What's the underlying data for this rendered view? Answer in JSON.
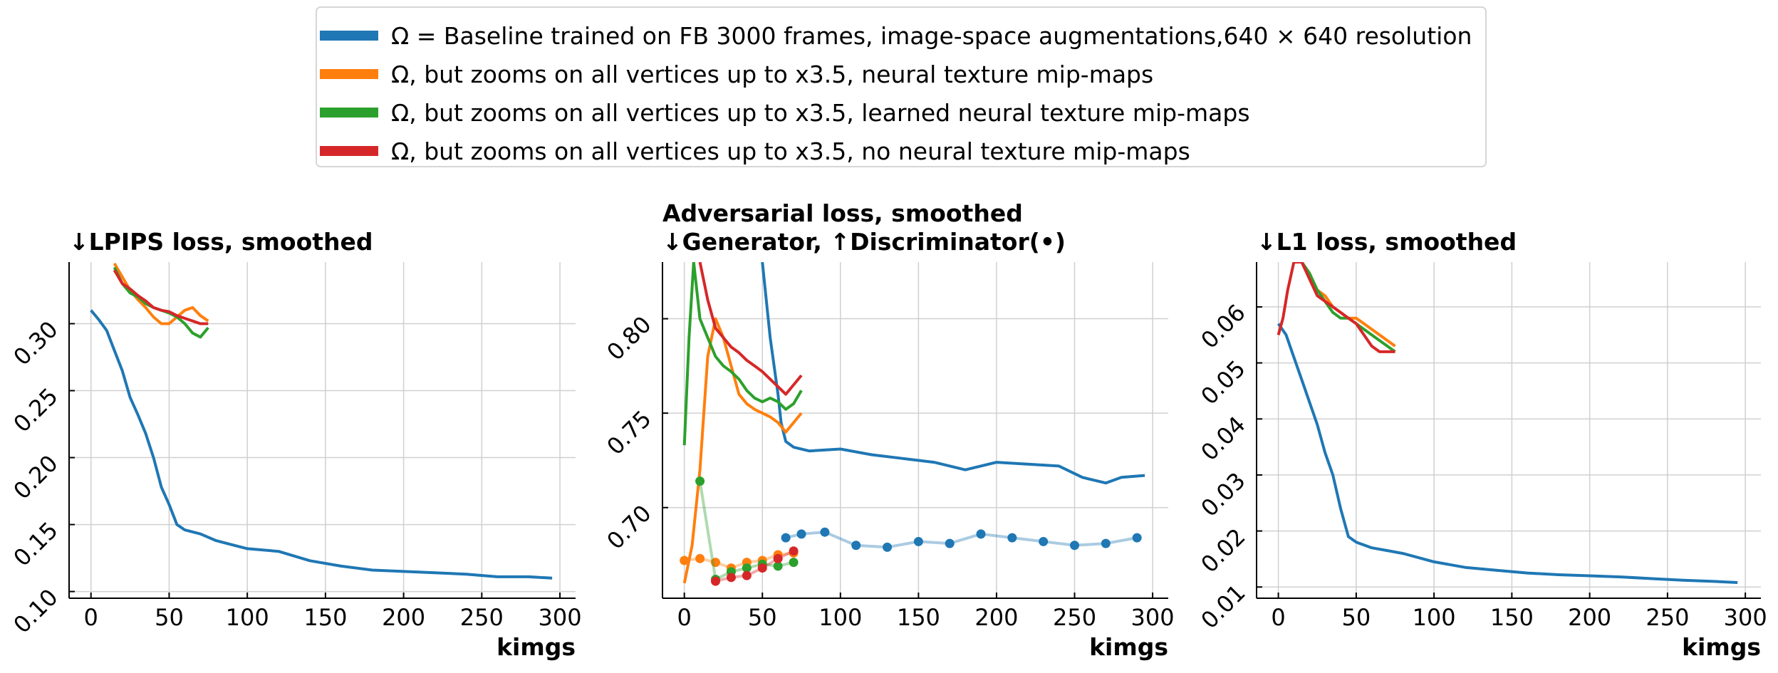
{
  "legend": [
    {
      "label": "Ω = Baseline trained on FB 3000 frames, image-space augmentations,640 × 640 resolution",
      "color": "#1f77b4"
    },
    {
      "label": "Ω, but zooms on all vertices up to x3.5, neural texture mip-maps",
      "color": "#ff7f0e"
    },
    {
      "label": "Ω, but zooms on all vertices up to x3.5, learned neural texture mip-maps",
      "color": "#2ca02c"
    },
    {
      "label": "Ω, but zooms on all vertices up to x3.5, no neural texture mip-maps",
      "color": "#d62728"
    }
  ],
  "chart_data": [
    {
      "type": "line",
      "title": "↓LPIPS loss, smoothed",
      "xlabel": "kimgs",
      "ylabel": "",
      "xlim": [
        -14,
        310
      ],
      "ylim": [
        0.095,
        0.346
      ],
      "xticks": [
        0,
        50,
        100,
        150,
        200,
        250,
        300
      ],
      "yticks": [
        0.1,
        0.15,
        0.2,
        0.25,
        0.3
      ],
      "ytick_labels": [
        "0.10",
        "0.15",
        "0.20",
        "0.25",
        "0.30"
      ],
      "grid": true,
      "series": [
        {
          "color": "#1f77b4",
          "x": [
            0,
            5,
            10,
            15,
            20,
            25,
            30,
            35,
            40,
            45,
            50,
            55,
            60,
            70,
            80,
            90,
            100,
            120,
            140,
            160,
            180,
            200,
            220,
            240,
            260,
            280,
            295
          ],
          "y": [
            0.31,
            0.303,
            0.295,
            0.28,
            0.265,
            0.245,
            0.232,
            0.218,
            0.2,
            0.178,
            0.165,
            0.15,
            0.146,
            0.143,
            0.138,
            0.135,
            0.132,
            0.13,
            0.123,
            0.119,
            0.116,
            0.115,
            0.114,
            0.113,
            0.111,
            0.111,
            0.11
          ]
        },
        {
          "color": "#ff7f0e",
          "x": [
            15,
            20,
            25,
            30,
            35,
            40,
            45,
            50,
            55,
            60,
            65,
            70,
            75
          ],
          "y": [
            0.345,
            0.335,
            0.325,
            0.318,
            0.312,
            0.305,
            0.3,
            0.3,
            0.305,
            0.31,
            0.312,
            0.306,
            0.302
          ]
        },
        {
          "color": "#2ca02c",
          "x": [
            15,
            20,
            25,
            30,
            35,
            40,
            45,
            50,
            55,
            60,
            65,
            70,
            75
          ],
          "y": [
            0.342,
            0.33,
            0.323,
            0.32,
            0.315,
            0.312,
            0.31,
            0.308,
            0.305,
            0.3,
            0.293,
            0.29,
            0.297
          ]
        },
        {
          "color": "#d62728",
          "x": [
            15,
            20,
            25,
            30,
            35,
            40,
            45,
            50,
            55,
            60,
            65,
            70,
            75
          ],
          "y": [
            0.34,
            0.33,
            0.326,
            0.321,
            0.317,
            0.312,
            0.31,
            0.309,
            0.306,
            0.304,
            0.302,
            0.3,
            0.3
          ]
        }
      ]
    },
    {
      "type": "line",
      "title": "Adversarial loss, smoothed",
      "subtitle": "↓Generator, ↑Discriminator(•)",
      "xlabel": "kimgs",
      "ylabel": "",
      "xlim": [
        -14,
        310
      ],
      "ylim": [
        0.652,
        0.83
      ],
      "xticks": [
        0,
        50,
        100,
        150,
        200,
        250,
        300
      ],
      "yticks": [
        0.7,
        0.75,
        0.8
      ],
      "ytick_labels": [
        "0.70",
        "0.75",
        "0.80"
      ],
      "grid": true,
      "series": [
        {
          "color": "#1f77b4",
          "role": "generator",
          "x": [
            50,
            55,
            60,
            62,
            65,
            70,
            80,
            100,
            120,
            140,
            160,
            180,
            200,
            220,
            240,
            255,
            270,
            280,
            295
          ],
          "y": [
            0.83,
            0.79,
            0.76,
            0.745,
            0.735,
            0.732,
            0.73,
            0.731,
            0.728,
            0.726,
            0.724,
            0.72,
            0.724,
            0.723,
            0.722,
            0.716,
            0.713,
            0.716,
            0.717
          ]
        },
        {
          "color": "#ff7f0e",
          "role": "generator",
          "x": [
            0,
            5,
            10,
            15,
            20,
            25,
            30,
            35,
            40,
            45,
            50,
            55,
            60,
            65,
            70,
            75
          ],
          "y": [
            0.66,
            0.68,
            0.72,
            0.78,
            0.8,
            0.79,
            0.775,
            0.76,
            0.755,
            0.752,
            0.75,
            0.748,
            0.745,
            0.74,
            0.745,
            0.75
          ]
        },
        {
          "color": "#2ca02c",
          "role": "generator",
          "x": [
            0,
            3,
            6,
            10,
            15,
            20,
            25,
            30,
            35,
            40,
            45,
            50,
            55,
            60,
            65,
            70,
            75
          ],
          "y": [
            0.733,
            0.79,
            0.83,
            0.8,
            0.79,
            0.78,
            0.775,
            0.772,
            0.768,
            0.762,
            0.758,
            0.756,
            0.758,
            0.756,
            0.752,
            0.755,
            0.762
          ]
        },
        {
          "color": "#d62728",
          "role": "generator",
          "x": [
            10,
            15,
            20,
            25,
            30,
            35,
            40,
            45,
            50,
            55,
            60,
            65,
            70,
            75
          ],
          "y": [
            0.83,
            0.81,
            0.795,
            0.79,
            0.785,
            0.782,
            0.778,
            0.775,
            0.772,
            0.768,
            0.764,
            0.76,
            0.765,
            0.77
          ]
        },
        {
          "color": "#1f77b4",
          "role": "discriminator",
          "x": [
            65,
            75,
            90,
            110,
            130,
            150,
            170,
            190,
            210,
            230,
            250,
            270,
            290
          ],
          "y": [
            0.684,
            0.686,
            0.687,
            0.68,
            0.679,
            0.682,
            0.681,
            0.686,
            0.684,
            0.682,
            0.68,
            0.681,
            0.684
          ]
        },
        {
          "color": "#ff7f0e",
          "role": "discriminator",
          "x": [
            0,
            10,
            20,
            30,
            40,
            50,
            60,
            70
          ],
          "y": [
            0.672,
            0.673,
            0.671,
            0.668,
            0.671,
            0.672,
            0.675,
            0.676
          ]
        },
        {
          "color": "#2ca02c",
          "role": "discriminator",
          "x": [
            10,
            20,
            30,
            40,
            50,
            60,
            70
          ],
          "y": [
            0.714,
            0.662,
            0.666,
            0.668,
            0.67,
            0.669,
            0.671
          ]
        },
        {
          "color": "#d62728",
          "role": "discriminator",
          "x": [
            20,
            30,
            40,
            50,
            60,
            70
          ],
          "y": [
            0.661,
            0.663,
            0.664,
            0.668,
            0.673,
            0.677
          ]
        }
      ]
    },
    {
      "type": "line",
      "title": "↓L1 loss, smoothed",
      "xlabel": "kimgs",
      "ylabel": "",
      "xlim": [
        -14,
        310
      ],
      "ylim": [
        0.008,
        0.068
      ],
      "xticks": [
        0,
        50,
        100,
        150,
        200,
        250,
        300
      ],
      "yticks": [
        0.01,
        0.02,
        0.03,
        0.04,
        0.05,
        0.06
      ],
      "ytick_labels": [
        "0.01",
        "0.02",
        "0.03",
        "0.04",
        "0.05",
        "0.06"
      ],
      "grid": true,
      "series": [
        {
          "color": "#1f77b4",
          "x": [
            0,
            5,
            10,
            15,
            20,
            25,
            30,
            35,
            40,
            45,
            50,
            60,
            70,
            80,
            100,
            120,
            140,
            160,
            180,
            200,
            220,
            240,
            260,
            280,
            295
          ],
          "y": [
            0.057,
            0.055,
            0.051,
            0.047,
            0.043,
            0.039,
            0.034,
            0.03,
            0.024,
            0.019,
            0.018,
            0.017,
            0.0165,
            0.016,
            0.0145,
            0.0135,
            0.013,
            0.0125,
            0.0122,
            0.012,
            0.0118,
            0.0115,
            0.0112,
            0.011,
            0.0108
          ]
        },
        {
          "color": "#ff7f0e",
          "x": [
            10,
            15,
            20,
            25,
            30,
            35,
            40,
            45,
            50,
            55,
            60,
            65,
            70,
            75
          ],
          "y": [
            0.068,
            0.068,
            0.066,
            0.063,
            0.062,
            0.06,
            0.059,
            0.058,
            0.058,
            0.057,
            0.056,
            0.055,
            0.054,
            0.053
          ]
        },
        {
          "color": "#2ca02c",
          "x": [
            15,
            20,
            25,
            30,
            35,
            40,
            45,
            50,
            55,
            60,
            65,
            70,
            75
          ],
          "y": [
            0.068,
            0.066,
            0.063,
            0.061,
            0.059,
            0.058,
            0.058,
            0.057,
            0.056,
            0.055,
            0.054,
            0.053,
            0.052
          ]
        },
        {
          "color": "#d62728",
          "x": [
            0,
            3,
            6,
            10,
            15,
            20,
            25,
            30,
            35,
            40,
            45,
            50,
            55,
            60,
            65,
            70,
            75
          ],
          "y": [
            0.055,
            0.058,
            0.063,
            0.068,
            0.068,
            0.065,
            0.062,
            0.061,
            0.06,
            0.059,
            0.058,
            0.057,
            0.055,
            0.053,
            0.052,
            0.052,
            0.052
          ]
        }
      ]
    }
  ]
}
